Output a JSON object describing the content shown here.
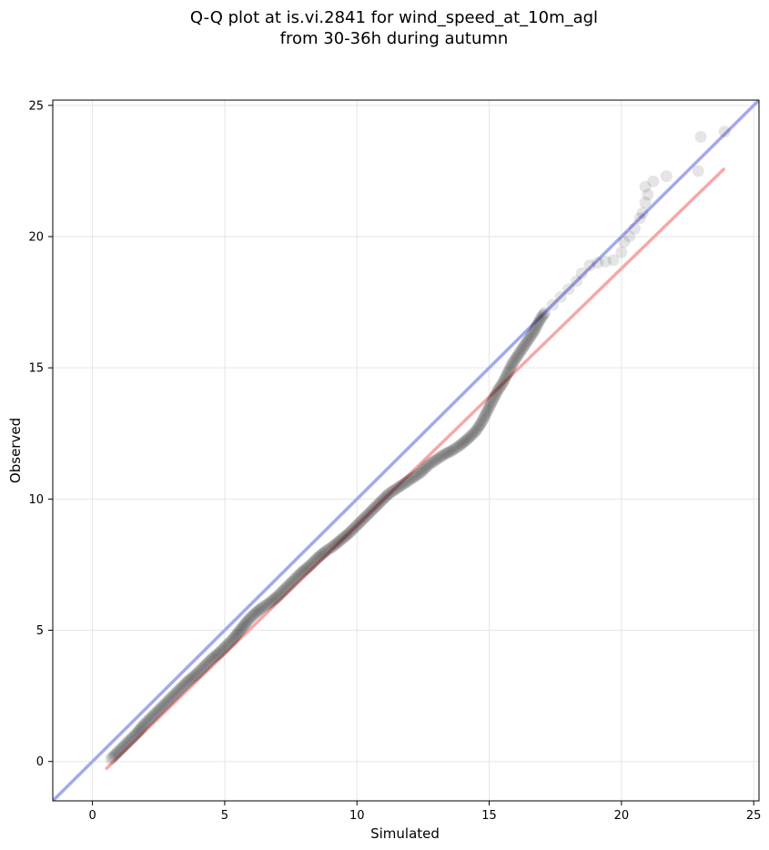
{
  "chart_data": {
    "type": "scatter",
    "title_line1": "Q-Q plot at is.vi.2841 for wind_speed_at_10m_agl",
    "title_line2": "from 30-36h during autumn",
    "xlabel": "Simulated",
    "ylabel": "Observed",
    "xlim": [
      -1.5,
      25.2
    ],
    "ylim": [
      -1.5,
      25.2
    ],
    "xticks": [
      0,
      5,
      10,
      15,
      20,
      25
    ],
    "yticks": [
      0,
      5,
      10,
      15,
      20,
      25
    ],
    "grid": true,
    "colors": {
      "points": "#000000",
      "identity_line": "#a4a8f0",
      "fit_line": "#f7a8a8",
      "grid": "#e6e6e6"
    },
    "identity_line": {
      "x": [
        -1.5,
        25.2
      ],
      "y": [
        -1.5,
        25.2
      ]
    },
    "fit_line": {
      "x": [
        0.5,
        23.9
      ],
      "y": [
        -0.3,
        22.6
      ]
    },
    "quantiles": [
      [
        0.7,
        0.1
      ],
      [
        0.9,
        0.3
      ],
      [
        1.1,
        0.5
      ],
      [
        1.3,
        0.7
      ],
      [
        1.5,
        0.9
      ],
      [
        1.7,
        1.1
      ],
      [
        1.9,
        1.35
      ],
      [
        2.1,
        1.55
      ],
      [
        2.4,
        1.85
      ],
      [
        2.7,
        2.15
      ],
      [
        3.0,
        2.45
      ],
      [
        3.3,
        2.75
      ],
      [
        3.6,
        3.05
      ],
      [
        3.9,
        3.3
      ],
      [
        4.2,
        3.6
      ],
      [
        4.5,
        3.9
      ],
      [
        4.8,
        4.15
      ],
      [
        5.1,
        4.45
      ],
      [
        5.3,
        4.65
      ],
      [
        5.5,
        4.9
      ],
      [
        5.7,
        5.15
      ],
      [
        5.9,
        5.4
      ],
      [
        6.1,
        5.6
      ],
      [
        6.4,
        5.85
      ],
      [
        6.7,
        6.05
      ],
      [
        7.0,
        6.3
      ],
      [
        7.3,
        6.6
      ],
      [
        7.6,
        6.9
      ],
      [
        7.9,
        7.2
      ],
      [
        8.2,
        7.45
      ],
      [
        8.5,
        7.75
      ],
      [
        8.8,
        8.0
      ],
      [
        9.1,
        8.2
      ],
      [
        9.4,
        8.45
      ],
      [
        9.7,
        8.7
      ],
      [
        10.0,
        9.0
      ],
      [
        10.3,
        9.3
      ],
      [
        10.6,
        9.6
      ],
      [
        10.9,
        9.9
      ],
      [
        11.2,
        10.2
      ],
      [
        11.5,
        10.4
      ],
      [
        11.8,
        10.6
      ],
      [
        12.1,
        10.8
      ],
      [
        12.4,
        11.0
      ],
      [
        12.7,
        11.3
      ],
      [
        13.0,
        11.5
      ],
      [
        13.3,
        11.7
      ],
      [
        13.6,
        11.85
      ],
      [
        13.9,
        12.05
      ],
      [
        14.2,
        12.3
      ],
      [
        14.5,
        12.6
      ],
      [
        14.7,
        12.9
      ],
      [
        14.9,
        13.3
      ],
      [
        15.1,
        13.7
      ],
      [
        15.3,
        14.1
      ],
      [
        15.5,
        14.4
      ],
      [
        15.7,
        14.8
      ],
      [
        15.9,
        15.2
      ],
      [
        16.1,
        15.5
      ],
      [
        16.3,
        15.8
      ],
      [
        16.5,
        16.1
      ],
      [
        16.7,
        16.4
      ],
      [
        16.9,
        16.8
      ],
      [
        17.1,
        17.1
      ],
      [
        17.4,
        17.4
      ],
      [
        17.7,
        17.7
      ],
      [
        18.0,
        18.0
      ],
      [
        18.3,
        18.3
      ],
      [
        18.5,
        18.6
      ],
      [
        18.8,
        18.9
      ],
      [
        19.1,
        19.0
      ],
      [
        19.4,
        19.05
      ],
      [
        19.7,
        19.1
      ],
      [
        20.0,
        19.4
      ],
      [
        20.1,
        19.8
      ],
      [
        20.3,
        20.0
      ],
      [
        20.5,
        20.3
      ],
      [
        20.7,
        20.7
      ],
      [
        20.8,
        20.9
      ],
      [
        20.9,
        21.3
      ],
      [
        21.0,
        21.6
      ],
      [
        20.9,
        21.9
      ],
      [
        21.2,
        22.1
      ],
      [
        21.7,
        22.3
      ],
      [
        22.9,
        22.5
      ],
      [
        23.0,
        23.8
      ],
      [
        23.9,
        24.0
      ]
    ]
  }
}
